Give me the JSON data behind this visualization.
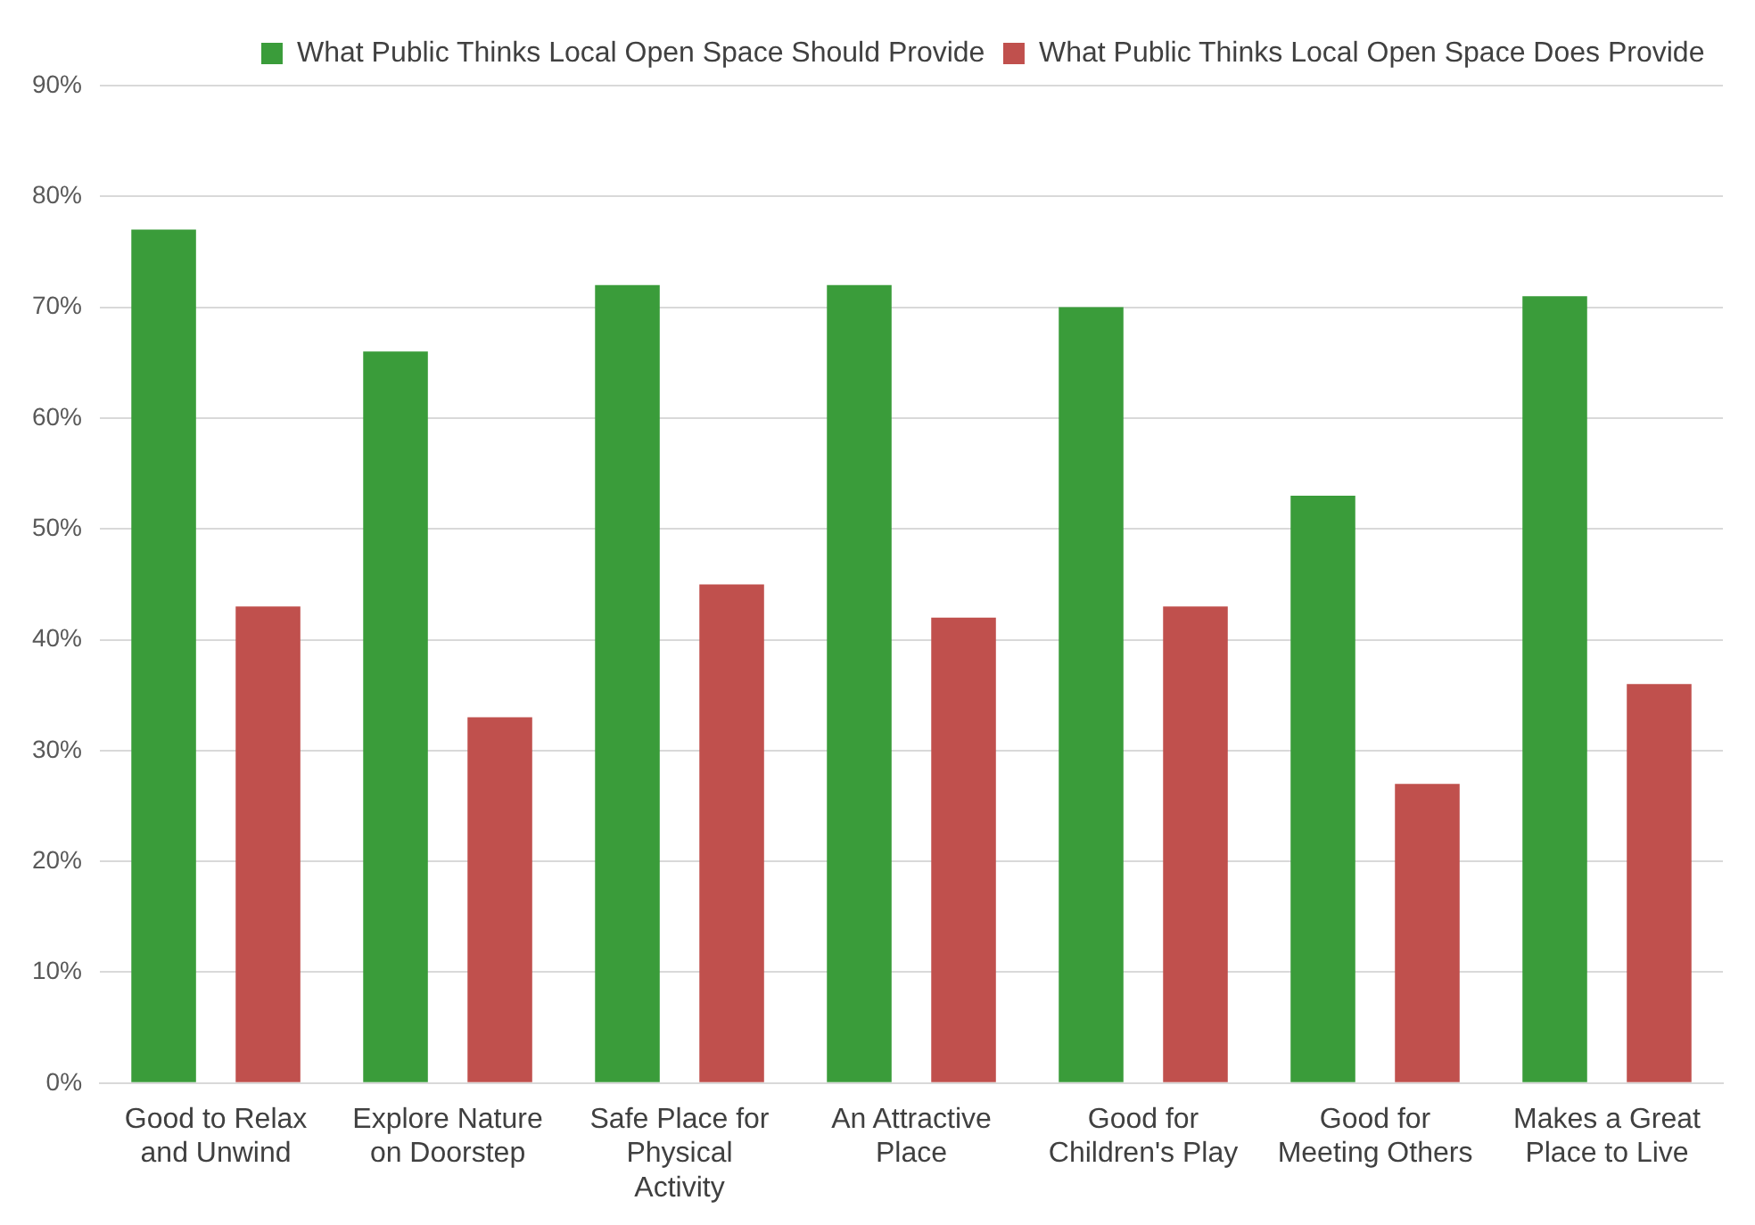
{
  "chart_data": {
    "type": "bar",
    "categories": [
      "Good to Relax and Unwind",
      "Explore Nature on Doorstep",
      "Safe Place for Physical Activity",
      "An Attractive Place",
      "Good for Children's Play",
      "Good for Meeting Others",
      "Makes a Great Place to Live"
    ],
    "series": [
      {
        "name": "What Public Thinks Local Open Space Should Provide",
        "color": "#3a9c3a",
        "values": [
          77,
          66,
          72,
          72,
          70,
          53,
          71
        ]
      },
      {
        "name": "What Public Thinks Local Open Space Does Provide",
        "color": "#c0504d",
        "values": [
          43,
          33,
          45,
          42,
          43,
          27,
          36
        ]
      }
    ],
    "ylim": [
      0,
      90
    ],
    "yticks": [
      {
        "value": 0,
        "label": "0%"
      },
      {
        "value": 10,
        "label": "10%"
      },
      {
        "value": 20,
        "label": "20%"
      },
      {
        "value": 30,
        "label": "30%"
      },
      {
        "value": 40,
        "label": "40%"
      },
      {
        "value": 50,
        "label": "50%"
      },
      {
        "value": 60,
        "label": "60%"
      },
      {
        "value": 70,
        "label": "70%"
      },
      {
        "value": 80,
        "label": "80%"
      },
      {
        "value": 90,
        "label": "90%"
      }
    ],
    "grid": "y",
    "legend": "top right"
  }
}
